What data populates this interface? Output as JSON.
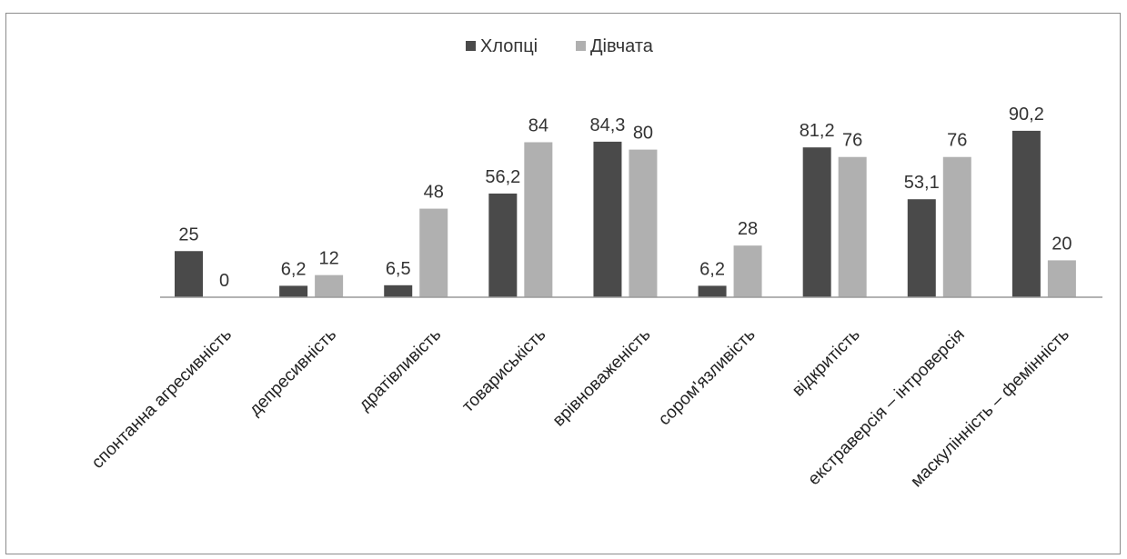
{
  "chart_data": {
    "type": "bar",
    "categories": [
      "спонтанна агресивність",
      "депресивність",
      "дратівливість",
      "товариськість",
      "врівноваженість",
      "сором'язливість",
      "відкритість",
      "екстраверсія – інтроверсія",
      "маскулінність – фемінність"
    ],
    "series": [
      {
        "name": "Хлопці",
        "values": [
          25,
          6.2,
          6.5,
          56.2,
          84.3,
          6.2,
          81.2,
          53.1,
          90.2
        ],
        "labels": [
          "25",
          "6,2",
          "6,5",
          "56,2",
          "84,3",
          "6,2",
          "81,2",
          "53,1",
          "90,2"
        ],
        "color": "#4a4a4a"
      },
      {
        "name": "Дівчата",
        "values": [
          0,
          12,
          48,
          84,
          80,
          28,
          76,
          76,
          20
        ],
        "labels": [
          "0",
          "12",
          "48",
          "84",
          "80",
          "28",
          "76",
          "76",
          "20"
        ],
        "color": "#b0b0b0"
      }
    ],
    "ylim": [
      0,
      100
    ],
    "grid": false,
    "legend": "top-center"
  }
}
